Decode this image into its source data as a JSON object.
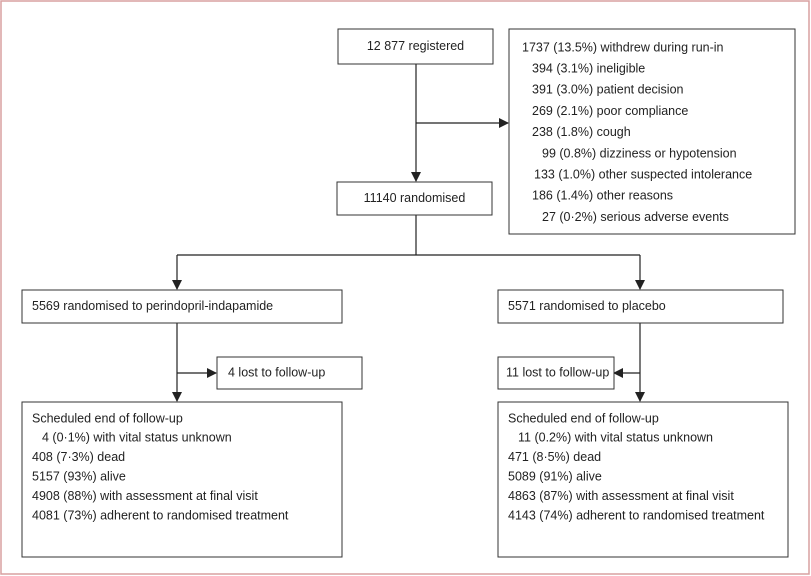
{
  "nodes": [
    {
      "label": "12 877 registered"
    },
    {
      "lines": [
        "1737 (13.5%) withdrew during run-in",
        "394 (3.1%) ineligible",
        "391 (3.0%) patient decision",
        "269 (2.1%) poor compliance",
        "238 (1.8%) cough",
        "99 (0.8%) dizziness or hypotension",
        "133 (1.0%) other suspected intolerance",
        "186 (1.4%) other reasons",
        "27 (0·2%) serious adverse events"
      ]
    },
    {
      "label": "11140 randomised"
    },
    {
      "label": "5569 randomised to perindopril-indapamide"
    },
    {
      "label": "5571 randomised to placebo"
    },
    {
      "label": "4 lost to follow-up"
    },
    {
      "label": "11 lost to follow-up"
    },
    {
      "lines": [
        "Scheduled end of follow-up",
        "4 (0·1%) with vital status unknown",
        "408 (7·3%) dead",
        "5157 (93%) alive",
        "4908 (88%) with assessment at final visit",
        "4081 (73%) adherent to randomised treatment"
      ]
    },
    {
      "lines": [
        "Scheduled end of follow-up",
        "11 (0.2%) with vital status unknown",
        "471 (8·5%) dead",
        "5089 (91%) alive",
        "4863 (87%) with assessment at final visit",
        "4143 (74%) adherent to randomised treatment"
      ]
    }
  ]
}
